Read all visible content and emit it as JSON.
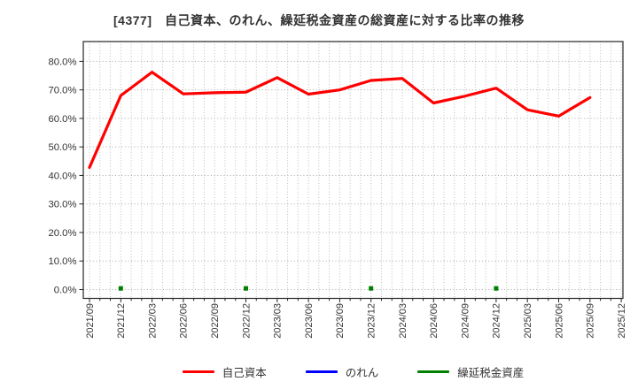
{
  "title": "[4377]　自己資本、のれん、繰延税金資産の総資産に対する比率の推移",
  "chart_data": {
    "type": "line",
    "title": "[4377]　自己資本、のれん、繰延税金資産の総資産に対する比率の推移",
    "x_labels": [
      "2021/09",
      "2021/12",
      "2022/03",
      "2022/06",
      "2022/09",
      "2022/12",
      "2023/03",
      "2023/06",
      "2023/09",
      "2023/12",
      "2024/03",
      "2024/06",
      "2024/09",
      "2024/12",
      "2025/03",
      "2025/06",
      "2025/09",
      "2025/12"
    ],
    "ytick_labels": [
      "0.0%",
      "10.0%",
      "20.0%",
      "30.0%",
      "40.0%",
      "50.0%",
      "60.0%",
      "70.0%",
      "80.0%"
    ],
    "ytick_values": [
      0,
      10,
      20,
      30,
      40,
      50,
      60,
      70,
      80
    ],
    "ylim": [
      -3,
      87
    ],
    "grid": true,
    "legend_position": "bottom",
    "unit": "%",
    "series": [
      {
        "name": "自己資本",
        "color": "#ff0000",
        "style": "line",
        "values": [
          42.8,
          68.0,
          76.2,
          68.6,
          69.0,
          69.2,
          74.3,
          68.5,
          70.0,
          73.3,
          74.0,
          65.4,
          67.8,
          70.6,
          63.0,
          60.8,
          67.3,
          null
        ]
      },
      {
        "name": "のれん",
        "color": "#0000ff",
        "style": "line",
        "values": [
          null,
          null,
          null,
          null,
          null,
          null,
          null,
          null,
          null,
          null,
          null,
          null,
          null,
          null,
          null,
          null,
          null,
          null
        ]
      },
      {
        "name": "繰延税金資産",
        "color": "#008000",
        "style": "square-markers",
        "values": [
          null,
          0.4,
          null,
          null,
          null,
          0.4,
          null,
          null,
          null,
          0.4,
          null,
          null,
          null,
          0.4,
          null,
          null,
          null,
          null
        ]
      }
    ]
  }
}
